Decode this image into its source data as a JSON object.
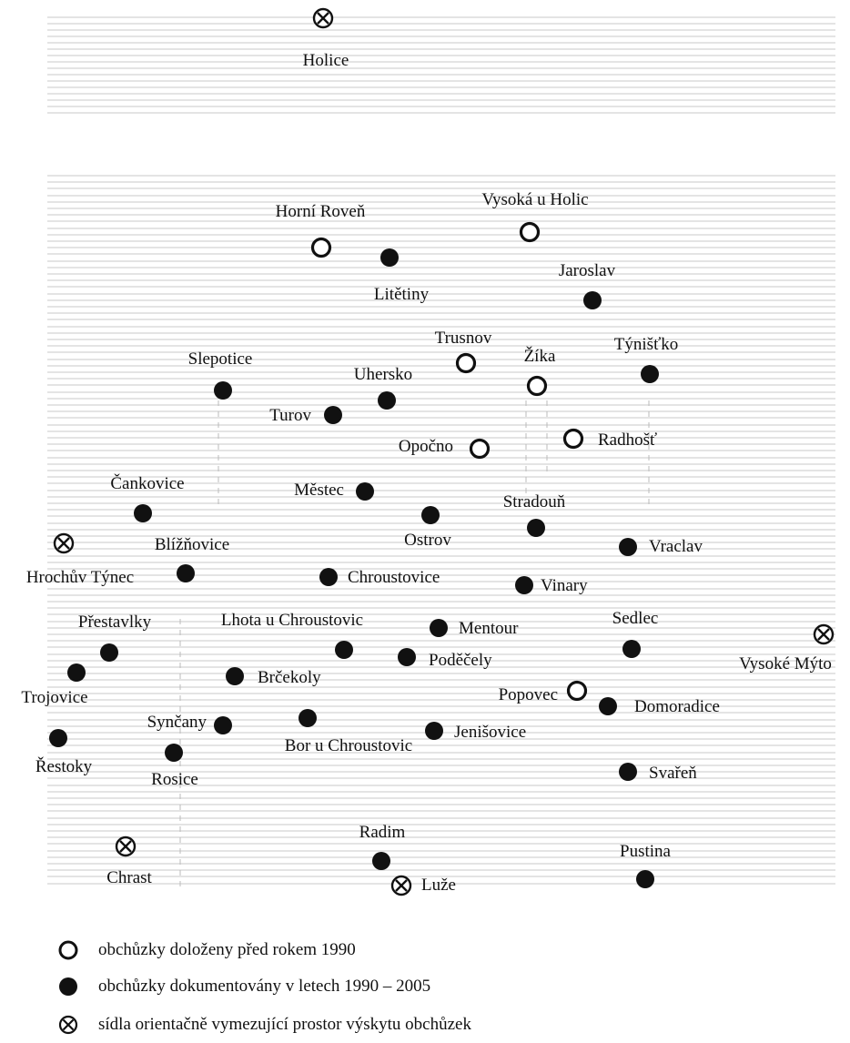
{
  "map": {
    "settlements": [
      {
        "name": "Holice",
        "kind": "boundary"
      },
      {
        "name": "Horní Roveň",
        "kind": "before1990"
      },
      {
        "name": "Vysoká u Holic",
        "kind": "before1990"
      },
      {
        "name": "Litětiny",
        "kind": "documented"
      },
      {
        "name": "Jaroslav",
        "kind": "documented"
      },
      {
        "name": "Trusnov",
        "kind": "before1990"
      },
      {
        "name": "Týnišťko",
        "kind": "documented"
      },
      {
        "name": "Žíka",
        "kind": "before1990"
      },
      {
        "name": "Slepotice",
        "kind": "documented"
      },
      {
        "name": "Uhersko",
        "kind": "documented"
      },
      {
        "name": "Turov",
        "kind": "documented"
      },
      {
        "name": "Radhošť",
        "kind": "before1990"
      },
      {
        "name": "Opočno",
        "kind": "before1990"
      },
      {
        "name": "Čankovice",
        "kind": "documented"
      },
      {
        "name": "Městec",
        "kind": "documented"
      },
      {
        "name": "Stradouň",
        "kind": "documented"
      },
      {
        "name": "Ostrov",
        "kind": "documented"
      },
      {
        "name": "Hrochův Týnec",
        "kind": "boundary"
      },
      {
        "name": "Blížňovice",
        "kind": "documented"
      },
      {
        "name": "Vraclav",
        "kind": "documented"
      },
      {
        "name": "Chroustovice",
        "kind": "documented"
      },
      {
        "name": "Vinary",
        "kind": "documented"
      },
      {
        "name": "Přestavlky",
        "kind": "documented"
      },
      {
        "name": "Lhota u Chroustovic",
        "kind": "documented"
      },
      {
        "name": "Mentour",
        "kind": "documented"
      },
      {
        "name": "Sedlec",
        "kind": "documented"
      },
      {
        "name": "Vysoké Mýto",
        "kind": "boundary"
      },
      {
        "name": "Poděčely",
        "kind": "documented"
      },
      {
        "name": "Trojovice",
        "kind": "documented"
      },
      {
        "name": "Brčekoly",
        "kind": "documented"
      },
      {
        "name": "Popovec",
        "kind": "before1990"
      },
      {
        "name": "Domoradice",
        "kind": "documented"
      },
      {
        "name": "Synčany",
        "kind": "documented"
      },
      {
        "name": "Bor u Chroustovic",
        "kind": "documented"
      },
      {
        "name": "Jenišovice",
        "kind": "documented"
      },
      {
        "name": "Řestoky",
        "kind": "documented"
      },
      {
        "name": "Rosice",
        "kind": "documented"
      },
      {
        "name": "Svařeň",
        "kind": "documented"
      },
      {
        "name": "Radim",
        "kind": "documented"
      },
      {
        "name": "Chrast",
        "kind": "boundary"
      },
      {
        "name": "Pustina",
        "kind": "documented"
      },
      {
        "name": "Luže",
        "kind": "boundary"
      }
    ]
  },
  "legend": {
    "before1990": "obchůzky doloženy před rokem 1990",
    "documented": "obchůzky dokumentovány v letech 1990 – 2005",
    "boundary": "sídla orientačně vymezující prostor výskytu obchůzek"
  },
  "symbols": {
    "before1990": "open-circle-icon",
    "documented": "filled-circle-icon",
    "boundary": "circled-cross-icon"
  },
  "colors": {
    "ink": "#111111",
    "lines": "#c8c8c8"
  }
}
